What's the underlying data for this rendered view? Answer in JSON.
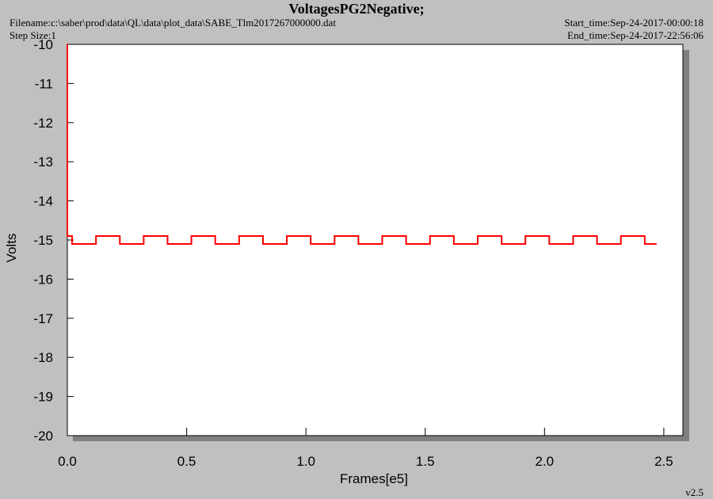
{
  "chart_data": {
    "type": "line",
    "title": "VoltagesPG2Negative;",
    "filename": "Filename:c:\\saber\\prod\\data\\QL\\data\\plot_data\\SABE_Tlm2017267000000.dat",
    "step_size": "Step Size:1",
    "start_time": "Start_time:Sep-24-2017-00:00:18",
    "end_time": "End_time:Sep-24-2017-22:56:06",
    "version": "v2.5",
    "xlabel": "Frames[e5]",
    "ylabel": "Volts",
    "xlim": [
      0,
      2.58
    ],
    "ylim": [
      -20,
      -10
    ],
    "xticks": [
      {
        "value": 0,
        "label": "0.0"
      },
      0.5,
      {
        "value": 1,
        "label": "1.0"
      },
      1.5,
      {
        "value": 2,
        "label": "2.0"
      },
      2.5
    ],
    "yticks": [
      -10,
      -11,
      -12,
      -13,
      -14,
      -15,
      -16,
      -17,
      -18,
      -19,
      -20
    ],
    "x": [
      0,
      0,
      0.02,
      0.02,
      0.12,
      0.12,
      0.22,
      0.22,
      0.32,
      0.32,
      0.42,
      0.42,
      0.52,
      0.52,
      0.62,
      0.62,
      0.72,
      0.72,
      0.82,
      0.82,
      0.92,
      0.92,
      1.02,
      1.02,
      1.12,
      1.12,
      1.22,
      1.22,
      1.32,
      1.32,
      1.42,
      1.42,
      1.52,
      1.52,
      1.62,
      1.62,
      1.72,
      1.72,
      1.82,
      1.82,
      1.92,
      1.92,
      2.02,
      2.02,
      2.12,
      2.12,
      2.22,
      2.22,
      2.32,
      2.32,
      2.42,
      2.42,
      2.47
    ],
    "series": [
      {
        "name": "PG2Negative",
        "color": "#ff0000",
        "values": [
          -10,
          -14.9,
          -14.9,
          -15.1,
          -15.1,
          -14.9,
          -14.9,
          -15.1,
          -15.1,
          -14.9,
          -14.9,
          -15.1,
          -15.1,
          -14.9,
          -14.9,
          -15.1,
          -15.1,
          -14.9,
          -14.9,
          -15.1,
          -15.1,
          -14.9,
          -14.9,
          -15.1,
          -15.1,
          -14.9,
          -14.9,
          -15.1,
          -15.1,
          -14.9,
          -14.9,
          -15.1,
          -15.1,
          -14.9,
          -14.9,
          -15.1,
          -15.1,
          -14.9,
          -14.9,
          -15.1,
          -15.1,
          -14.9,
          -14.9,
          -15.1,
          -15.1,
          -14.9,
          -14.9,
          -15.1,
          -15.1,
          -14.9,
          -14.9,
          -15.1,
          -15.1
        ]
      }
    ]
  }
}
